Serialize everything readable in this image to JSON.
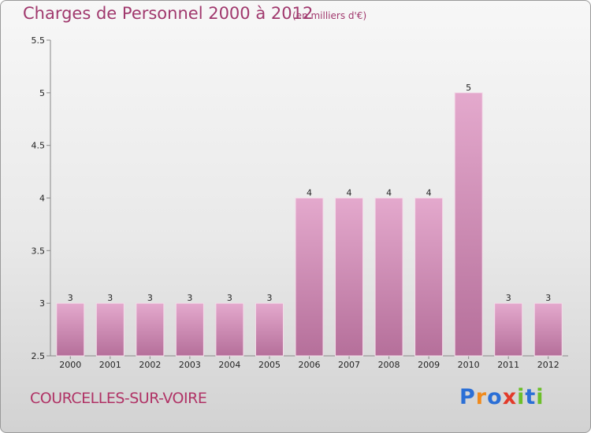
{
  "title": "Charges de Personnel 2000 à 2012",
  "subtitle": "(en milliers d'€)",
  "commune": "COURCELLES-SUR-VOIRE",
  "brand": {
    "letters": [
      "P",
      "r",
      "o",
      "x",
      "i",
      "t",
      "i"
    ],
    "colors": [
      "#2b6fd6",
      "#f08a1c",
      "#2b6fd6",
      "#e23a2a",
      "#6cbf2a",
      "#2b6fd6",
      "#6cbf2a"
    ]
  },
  "colors": {
    "bar_top": "#e4a9cd",
    "bar_bottom": "#b56f9a",
    "text_accent": "#a0386d"
  },
  "chart_data": {
    "type": "bar",
    "categories": [
      "2000",
      "2001",
      "2002",
      "2003",
      "2004",
      "2005",
      "2006",
      "2007",
      "2008",
      "2009",
      "2010",
      "2011",
      "2012"
    ],
    "values": [
      3,
      3,
      3,
      3,
      3,
      3,
      4,
      4,
      4,
      4,
      5,
      3,
      3
    ],
    "ylim": [
      2.5,
      5.5
    ],
    "yticks": [
      "2.5",
      "3",
      "3.5",
      "4",
      "4.5",
      "5",
      "5.5"
    ],
    "grid": false
  }
}
